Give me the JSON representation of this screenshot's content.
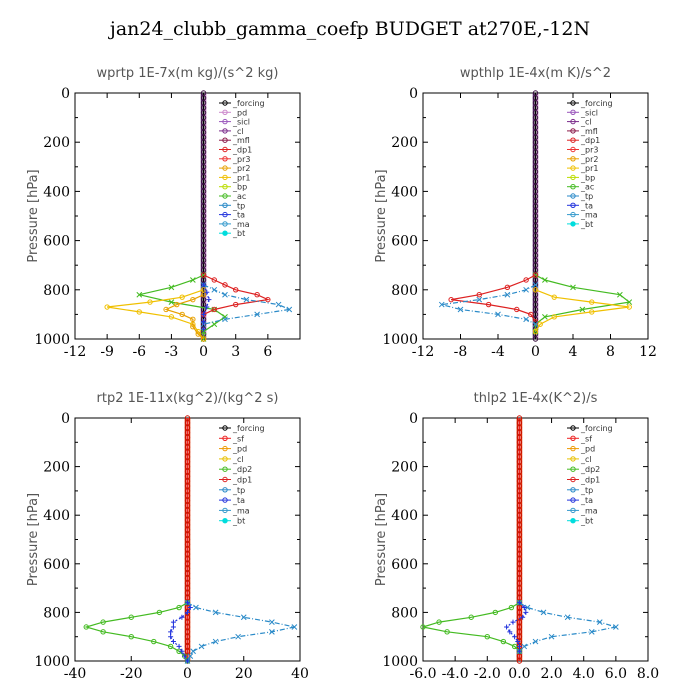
{
  "title": "jan24_clubb_gamma_coefp  BUDGET at270E,-12N",
  "colors": {
    "_forcing": "#000000",
    "_pd": "#cc88cc",
    "_sicl": "#9955bb",
    "_cl": "#7a2a8a",
    "_mfl": "#8b1a4a",
    "_dp1": "#dd2222",
    "_pr3": "#ee3333",
    "_pr2": "#e8a000",
    "_pr1": "#f0c000",
    "_bp": "#bbdd00",
    "_ac": "#44bb22",
    "_tp": "#2a8ac8",
    "_ta": "#2233dd",
    "_ma": "#3399cc",
    "_bt": "#00dddd",
    "_sf": "#ee2222",
    "_dp2": "#44bb22",
    "_cl_y": "#e8c000",
    "_pd_o": "#ee9900"
  },
  "chart_data": [
    {
      "type": "line",
      "title": "wprtp   1E-7x(m kg)/(s^2 kg)",
      "ylabel": "Pressure [hPa]",
      "xlim": [
        -12,
        9
      ],
      "ylim": [
        1000,
        0
      ],
      "xticks": [
        "-12",
        "-9",
        "-6",
        "-3",
        "0",
        "3",
        "6"
      ],
      "xtick_values": [
        -12,
        -9,
        -6,
        -3,
        0,
        3,
        6
      ],
      "yticks": [
        "0",
        "200",
        "400",
        "600",
        "800",
        "1000"
      ],
      "ytick_values": [
        0,
        200,
        400,
        600,
        800,
        1000
      ],
      "legend": [
        "_forcing",
        "_pd",
        "_sicl",
        "_cl",
        "_mfl",
        "_dp1",
        "_pr3",
        "_pr2",
        "_pr1",
        "_bp",
        "_ac",
        "_tp",
        "_ta",
        "_ma",
        "_bt"
      ],
      "series": [
        {
          "name": "_ac",
          "y": [
            740,
            760,
            790,
            820,
            850,
            880,
            910,
            940,
            970,
            1000
          ],
          "values": [
            0,
            -1,
            -3,
            -6,
            -3,
            1,
            2,
            1,
            0,
            0
          ]
        },
        {
          "name": "_pr1",
          "y": [
            800,
            830,
            850,
            870,
            890,
            910,
            940,
            970,
            1000
          ],
          "values": [
            0,
            -2,
            -5,
            -9,
            -6,
            -3,
            -1,
            -0.5,
            0
          ]
        },
        {
          "name": "_pr2",
          "y": [
            820,
            840,
            860,
            880,
            900,
            920,
            950,
            980,
            1000
          ],
          "values": [
            0,
            -1,
            -2.5,
            -3.5,
            -2,
            -1,
            -1,
            -0.5,
            0
          ]
        },
        {
          "name": "_dp1",
          "y": [
            740,
            760,
            780,
            800,
            820,
            840,
            860,
            880,
            900
          ],
          "values": [
            0,
            1,
            2,
            3,
            5,
            6,
            3,
            1,
            0
          ]
        },
        {
          "name": "_tp",
          "y": [
            780,
            800,
            820,
            840,
            860,
            880,
            900,
            920,
            940
          ],
          "values": [
            0,
            1,
            2,
            4,
            7,
            8,
            5,
            2,
            0
          ]
        },
        {
          "name": "_ta",
          "y": [
            780,
            810,
            840,
            870,
            900,
            930,
            960
          ],
          "values": [
            0,
            0.3,
            0.5,
            0.3,
            0,
            0,
            0
          ]
        }
      ]
    },
    {
      "type": "line",
      "title": "wpthlp   1E-4x(m K)/s^2",
      "ylabel": "Pressure [hPa]",
      "xlim": [
        -12,
        12
      ],
      "ylim": [
        1000,
        0
      ],
      "xticks": [
        "-12",
        "-8",
        "-4",
        "0",
        "4",
        "8",
        "12"
      ],
      "xtick_values": [
        -12,
        -8,
        -4,
        0,
        4,
        8,
        12
      ],
      "yticks": [
        "0",
        "200",
        "400",
        "600",
        "800",
        "1000"
      ],
      "ytick_values": [
        0,
        200,
        400,
        600,
        800,
        1000
      ],
      "legend": [
        "_forcing",
        "_sicl",
        "_cl",
        "_mfl",
        "_dp1",
        "_pr3",
        "_pr2",
        "_pr1",
        "_bp",
        "_ac",
        "_tp",
        "_ta",
        "_ma",
        "_bt"
      ],
      "series": [
        {
          "name": "_ac",
          "y": [
            740,
            760,
            790,
            820,
            850,
            880,
            910,
            940,
            970
          ],
          "values": [
            0,
            1,
            4,
            9,
            10,
            5,
            1,
            0,
            0
          ]
        },
        {
          "name": "_pr1",
          "y": [
            800,
            830,
            850,
            870,
            890,
            910,
            940,
            970
          ],
          "values": [
            0,
            2,
            6,
            10,
            6,
            2,
            0.5,
            0
          ]
        },
        {
          "name": "_dp1",
          "y": [
            740,
            760,
            790,
            820,
            840,
            860,
            880,
            900,
            930
          ],
          "values": [
            0,
            -1,
            -3,
            -6,
            -9,
            -5,
            -2,
            -0.5,
            0
          ]
        },
        {
          "name": "_tp",
          "y": [
            780,
            800,
            820,
            840,
            860,
            880,
            900,
            920,
            940
          ],
          "values": [
            0,
            -1,
            -3,
            -6,
            -10,
            -8,
            -4,
            -1,
            0
          ]
        }
      ]
    },
    {
      "type": "line",
      "title": "rtp2   1E-11x(kg^2)/(kg^2 s)",
      "ylabel": "Pressure [hPa]",
      "xlim": [
        -40,
        40
      ],
      "ylim": [
        1000,
        0
      ],
      "xticks": [
        "-40",
        "-20",
        "0",
        "20",
        "40"
      ],
      "xtick_values": [
        -40,
        -20,
        0,
        20,
        40
      ],
      "yticks": [
        "0",
        "200",
        "400",
        "600",
        "800",
        "1000"
      ],
      "ytick_values": [
        0,
        200,
        400,
        600,
        800,
        1000
      ],
      "legend": [
        "_forcing",
        "_sf",
        "_pd",
        "_cl",
        "_dp2",
        "_dp1",
        "_tp",
        "_ta",
        "_ma",
        "_bt"
      ],
      "series": [
        {
          "name": "_dp2",
          "y": [
            760,
            780,
            800,
            820,
            840,
            860,
            880,
            900,
            920,
            940,
            960,
            980,
            1000
          ],
          "values": [
            0,
            -3,
            -10,
            -20,
            -30,
            -36,
            -30,
            -20,
            -12,
            -6,
            -3,
            -1,
            0
          ]
        },
        {
          "name": "_tp",
          "y": [
            760,
            780,
            800,
            820,
            840,
            860,
            880,
            900,
            920,
            940,
            960,
            980,
            1000
          ],
          "values": [
            0,
            3,
            10,
            20,
            30,
            38,
            30,
            18,
            10,
            5,
            2,
            1,
            0
          ]
        },
        {
          "name": "_ta",
          "y": [
            760,
            780,
            800,
            820,
            840,
            860,
            880,
            900,
            920,
            940,
            960,
            980,
            1000
          ],
          "values": [
            0,
            1,
            0,
            -2,
            -5,
            -5,
            -6,
            -6,
            -5,
            -3,
            -2,
            -1,
            0
          ]
        }
      ]
    },
    {
      "type": "line",
      "title": "thlp2   1E-4x(K^2)/s",
      "ylabel": "Pressure [hPa]",
      "xlim": [
        -6,
        8
      ],
      "ylim": [
        1000,
        0
      ],
      "xticks": [
        "-6.0",
        "-4.0",
        "-2.0",
        "0.0",
        "2.0",
        "4.0",
        "6.0",
        "8.0"
      ],
      "xtick_values": [
        -6,
        -4,
        -2,
        0,
        2,
        4,
        6,
        8
      ],
      "yticks": [
        "0",
        "200",
        "400",
        "600",
        "800",
        "1000"
      ],
      "ytick_values": [
        0,
        200,
        400,
        600,
        800,
        1000
      ],
      "legend": [
        "_forcing",
        "_sf",
        "_pd",
        "_cl",
        "_dp2",
        "_dp1",
        "_tp",
        "_ta",
        "_ma",
        "_bt"
      ],
      "series": [
        {
          "name": "_dp2",
          "y": [
            760,
            780,
            800,
            820,
            840,
            860,
            880,
            900,
            920,
            940,
            960
          ],
          "values": [
            0,
            -0.5,
            -1.5,
            -3,
            -5,
            -6,
            -4.5,
            -2,
            -1,
            -0.3,
            0
          ]
        },
        {
          "name": "_tp",
          "y": [
            760,
            780,
            800,
            820,
            840,
            860,
            880,
            900,
            920,
            940,
            960
          ],
          "values": [
            0,
            0.5,
            1.5,
            3,
            5,
            6,
            4.5,
            2,
            1,
            0.3,
            0
          ]
        },
        {
          "name": "_ta",
          "y": [
            760,
            780,
            800,
            820,
            840,
            860,
            880,
            900,
            920,
            940,
            960
          ],
          "values": [
            0,
            0.3,
            0.4,
            0.2,
            -0.4,
            -0.8,
            -0.6,
            -0.3,
            -0.1,
            0,
            0
          ]
        }
      ]
    }
  ]
}
